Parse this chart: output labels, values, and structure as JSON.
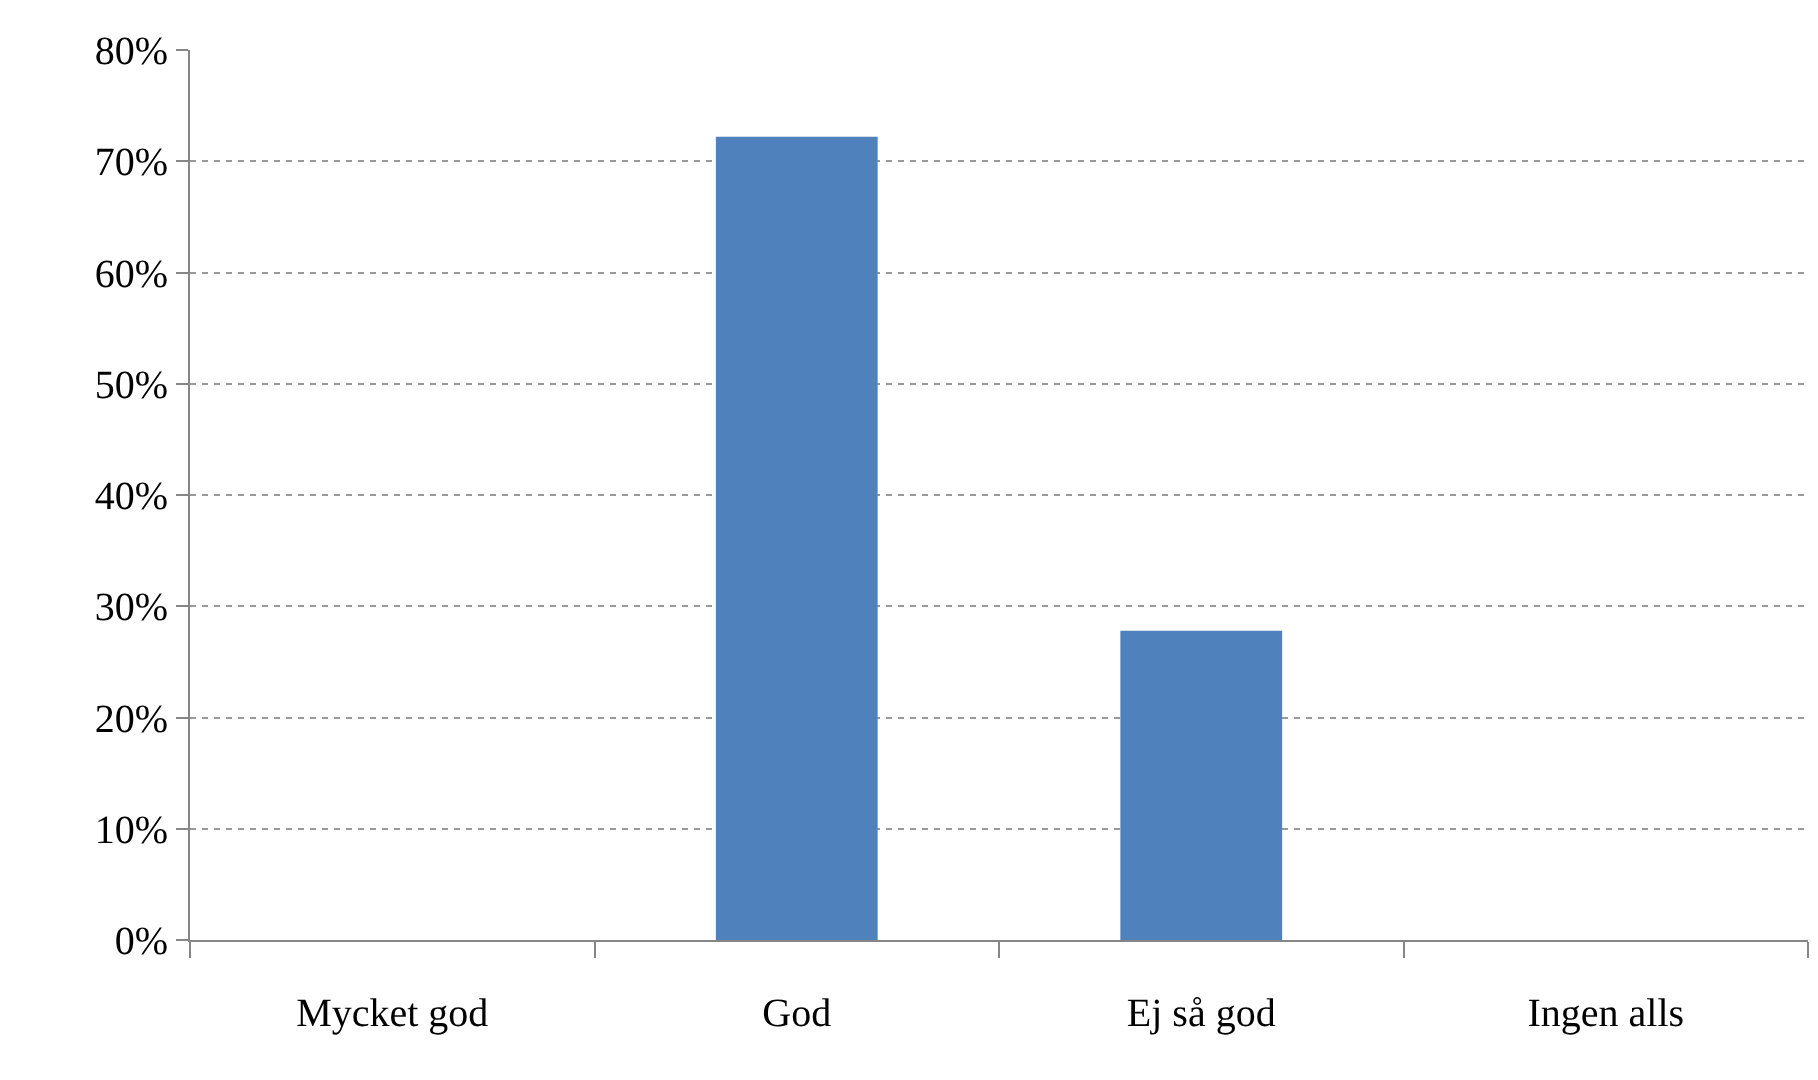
{
  "chart_data": {
    "type": "bar",
    "categories": [
      "Mycket god",
      "God",
      "Ej så god",
      "Ingen alls"
    ],
    "values": [
      0,
      72.2,
      27.8,
      0
    ],
    "color": "#4f81bd",
    "ylim": [
      0,
      80
    ],
    "yticks": [
      {
        "value": 0,
        "label": "0%"
      },
      {
        "value": 10,
        "label": "10%"
      },
      {
        "value": 20,
        "label": "20%"
      },
      {
        "value": 30,
        "label": "30%"
      },
      {
        "value": 40,
        "label": "40%"
      },
      {
        "value": 50,
        "label": "50%"
      },
      {
        "value": 60,
        "label": "60%"
      },
      {
        "value": 70,
        "label": "70%"
      },
      {
        "value": 80,
        "label": "80%"
      }
    ],
    "grid": "y"
  }
}
